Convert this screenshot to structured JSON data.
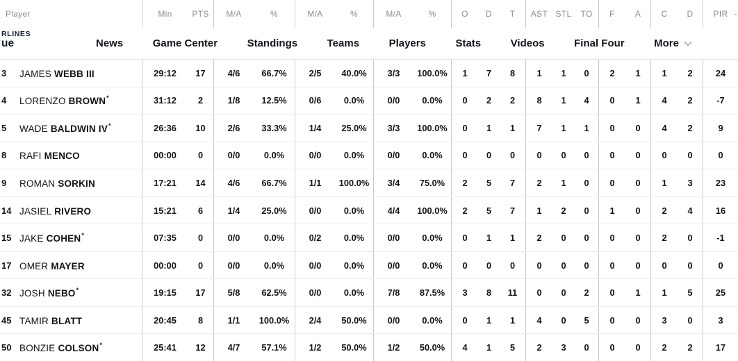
{
  "brand": {
    "logo_line1": "RLINES",
    "logo_line2": "ue"
  },
  "nav": {
    "items": [
      "News",
      "Game Center",
      "Standings",
      "Teams",
      "Players",
      "Stats",
      "Videos",
      "Final Four",
      "More"
    ]
  },
  "table": {
    "header": [
      "Player",
      "Min",
      "PTS",
      "M/A",
      "%",
      "M/A",
      "%",
      "M/A",
      "%",
      "O",
      "D",
      "T",
      "AST",
      "STL",
      "TO",
      "F",
      "A",
      "C",
      "D",
      "PIR"
    ],
    "sort_indicator": "-",
    "rows": [
      {
        "num": "3",
        "first": "JAMES",
        "last": "WEBB III",
        "star": "",
        "min": "29:12",
        "pts": "17",
        "fg2": "4/6",
        "fg2p": "66.7%",
        "fg3": "2/5",
        "fg3p": "40.0%",
        "ft": "3/3",
        "ftp": "100.0%",
        "o": "1",
        "d": "7",
        "t": "8",
        "ast": "1",
        "stl": "1",
        "to": "0",
        "f": "2",
        "a": "1",
        "c": "1",
        "d2": "2",
        "pir": "24"
      },
      {
        "num": "4",
        "first": "LORENZO",
        "last": "BROWN",
        "star": "*",
        "min": "31:12",
        "pts": "2",
        "fg2": "1/8",
        "fg2p": "12.5%",
        "fg3": "0/6",
        "fg3p": "0.0%",
        "ft": "0/0",
        "ftp": "0.0%",
        "o": "0",
        "d": "2",
        "t": "2",
        "ast": "8",
        "stl": "1",
        "to": "4",
        "f": "0",
        "a": "1",
        "c": "4",
        "d2": "2",
        "pir": "-7"
      },
      {
        "num": "5",
        "first": "WADE",
        "last": "BALDWIN IV",
        "star": "*",
        "min": "26:36",
        "pts": "10",
        "fg2": "2/6",
        "fg2p": "33.3%",
        "fg3": "1/4",
        "fg3p": "25.0%",
        "ft": "3/3",
        "ftp": "100.0%",
        "o": "0",
        "d": "1",
        "t": "1",
        "ast": "7",
        "stl": "1",
        "to": "1",
        "f": "0",
        "a": "0",
        "c": "4",
        "d2": "2",
        "pir": "9"
      },
      {
        "num": "8",
        "first": "RAFI",
        "last": "MENCO",
        "star": "",
        "min": "00:00",
        "pts": "0",
        "fg2": "0/0",
        "fg2p": "0.0%",
        "fg3": "0/0",
        "fg3p": "0.0%",
        "ft": "0/0",
        "ftp": "0.0%",
        "o": "0",
        "d": "0",
        "t": "0",
        "ast": "0",
        "stl": "0",
        "to": "0",
        "f": "0",
        "a": "0",
        "c": "0",
        "d2": "0",
        "pir": "0"
      },
      {
        "num": "9",
        "first": "ROMAN",
        "last": "SORKIN",
        "star": "",
        "min": "17:21",
        "pts": "14",
        "fg2": "4/6",
        "fg2p": "66.7%",
        "fg3": "1/1",
        "fg3p": "100.0%",
        "ft": "3/4",
        "ftp": "75.0%",
        "o": "2",
        "d": "5",
        "t": "7",
        "ast": "2",
        "stl": "1",
        "to": "0",
        "f": "0",
        "a": "0",
        "c": "1",
        "d2": "3",
        "pir": "23"
      },
      {
        "num": "14",
        "first": "JASIEL",
        "last": "RIVERO",
        "star": "",
        "min": "15:21",
        "pts": "6",
        "fg2": "1/4",
        "fg2p": "25.0%",
        "fg3": "0/0",
        "fg3p": "0.0%",
        "ft": "4/4",
        "ftp": "100.0%",
        "o": "2",
        "d": "5",
        "t": "7",
        "ast": "1",
        "stl": "2",
        "to": "0",
        "f": "1",
        "a": "0",
        "c": "2",
        "d2": "4",
        "pir": "16"
      },
      {
        "num": "15",
        "first": "JAKE",
        "last": "COHEN",
        "star": "*",
        "min": "07:35",
        "pts": "0",
        "fg2": "0/0",
        "fg2p": "0.0%",
        "fg3": "0/2",
        "fg3p": "0.0%",
        "ft": "0/0",
        "ftp": "0.0%",
        "o": "0",
        "d": "1",
        "t": "1",
        "ast": "2",
        "stl": "0",
        "to": "0",
        "f": "0",
        "a": "0",
        "c": "2",
        "d2": "0",
        "pir": "-1"
      },
      {
        "num": "17",
        "first": "OMER",
        "last": "MAYER",
        "star": "",
        "min": "00:00",
        "pts": "0",
        "fg2": "0/0",
        "fg2p": "0.0%",
        "fg3": "0/0",
        "fg3p": "0.0%",
        "ft": "0/0",
        "ftp": "0.0%",
        "o": "0",
        "d": "0",
        "t": "0",
        "ast": "0",
        "stl": "0",
        "to": "0",
        "f": "0",
        "a": "0",
        "c": "0",
        "d2": "0",
        "pir": "0"
      },
      {
        "num": "32",
        "first": "JOSH",
        "last": "NEBO",
        "star": "*",
        "min": "19:15",
        "pts": "17",
        "fg2": "5/8",
        "fg2p": "62.5%",
        "fg3": "0/0",
        "fg3p": "0.0%",
        "ft": "7/8",
        "ftp": "87.5%",
        "o": "3",
        "d": "8",
        "t": "11",
        "ast": "0",
        "stl": "0",
        "to": "2",
        "f": "0",
        "a": "1",
        "c": "1",
        "d2": "5",
        "pir": "25"
      },
      {
        "num": "45",
        "first": "TAMIR",
        "last": "BLATT",
        "star": "",
        "min": "20:45",
        "pts": "8",
        "fg2": "1/1",
        "fg2p": "100.0%",
        "fg3": "2/4",
        "fg3p": "50.0%",
        "ft": "0/0",
        "ftp": "0.0%",
        "o": "0",
        "d": "1",
        "t": "1",
        "ast": "4",
        "stl": "0",
        "to": "5",
        "f": "0",
        "a": "0",
        "c": "3",
        "d2": "0",
        "pir": "3"
      },
      {
        "num": "50",
        "first": "BONZIE",
        "last": "COLSON",
        "star": "*",
        "min": "25:41",
        "pts": "12",
        "fg2": "4/7",
        "fg2p": "57.1%",
        "fg3": "1/2",
        "fg3p": "50.0%",
        "ft": "1/2",
        "ftp": "50.0%",
        "o": "4",
        "d": "1",
        "t": "5",
        "ast": "2",
        "stl": "3",
        "to": "0",
        "f": "0",
        "a": "0",
        "c": "2",
        "d2": "2",
        "pir": "17"
      }
    ]
  }
}
